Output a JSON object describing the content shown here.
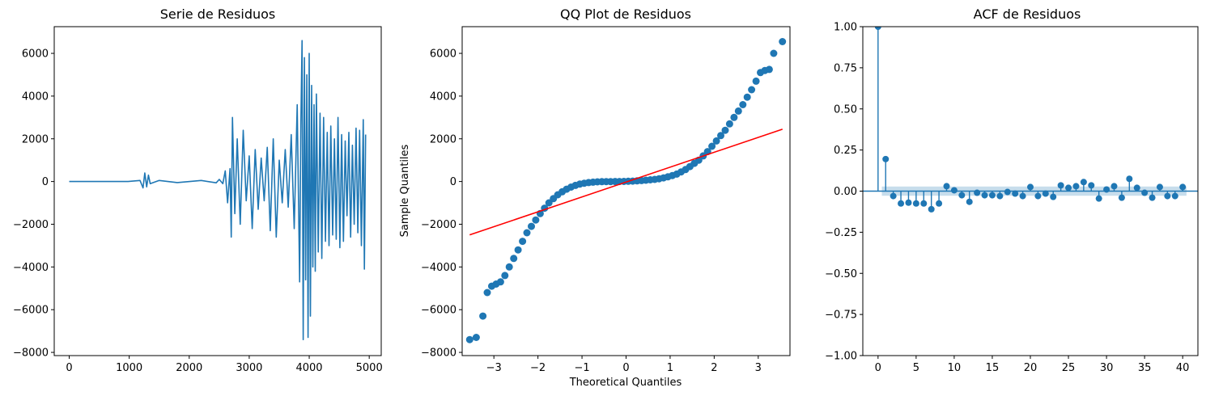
{
  "chart_data": [
    {
      "type": "line",
      "title": "Serie de Residuos",
      "xlabel": "",
      "ylabel": "",
      "xlim": [
        -250,
        5200
      ],
      "ylim": [
        -8150,
        7250
      ],
      "x_ticks": [
        0,
        1000,
        2000,
        3000,
        4000,
        5000
      ],
      "y_ticks": [
        -8000,
        -6000,
        -4000,
        -2000,
        0,
        2000,
        4000,
        6000
      ],
      "grid": false,
      "series": [
        {
          "color": "#1f77b4",
          "x": [
            0,
            300,
            980,
            1180,
            1230,
            1260,
            1290,
            1320,
            1350,
            1500,
            1800,
            2200,
            2450,
            2500,
            2560,
            2600,
            2640,
            2680,
            2700,
            2720,
            2760,
            2800,
            2850,
            2900,
            2950,
            3000,
            3050,
            3100,
            3150,
            3200,
            3250,
            3300,
            3350,
            3400,
            3450,
            3500,
            3550,
            3600,
            3650,
            3700,
            3750,
            3800,
            3840,
            3860,
            3880,
            3900,
            3920,
            3940,
            3960,
            3980,
            4000,
            4020,
            4040,
            4060,
            4080,
            4100,
            4120,
            4150,
            4180,
            4210,
            4240,
            4270,
            4300,
            4330,
            4360,
            4390,
            4420,
            4450,
            4480,
            4510,
            4540,
            4570,
            4600,
            4630,
            4660,
            4690,
            4720,
            4750,
            4780,
            4810,
            4840,
            4870,
            4900,
            4920,
            4940
          ],
          "y": [
            0,
            0,
            0,
            50,
            -300,
            400,
            -250,
            300,
            -100,
            50,
            -50,
            50,
            -60,
            100,
            -100,
            500,
            -1000,
            600,
            -2600,
            3000,
            -1500,
            2000,
            -2000,
            2400,
            -900,
            1200,
            -2200,
            1500,
            -1300,
            1100,
            -900,
            1600,
            -2300,
            2000,
            -2600,
            1000,
            -1000,
            1500,
            -1200,
            2200,
            -2200,
            3600,
            -4700,
            2600,
            6600,
            -7400,
            5800,
            -4600,
            5000,
            -7300,
            6000,
            -6300,
            4500,
            -4000,
            3600,
            -4200,
            4100,
            -3300,
            3200,
            -3600,
            3000,
            -2800,
            2300,
            -3000,
            2600,
            -2500,
            2000,
            -2700,
            3000,
            -3100,
            2200,
            -2800,
            1900,
            -1600,
            2300,
            -2600,
            1700,
            -2000,
            2500,
            -2400,
            2400,
            -3000,
            2900,
            -4100,
            2200
          ]
        }
      ]
    },
    {
      "type": "scatter",
      "title": "QQ Plot de Residuos",
      "xlabel": "Theoretical Quantiles",
      "ylabel": "Sample Quantiles",
      "xlim": [
        -3.72,
        3.72
      ],
      "ylim": [
        -8150,
        7250
      ],
      "x_ticks": [
        -3,
        -2,
        -1,
        0,
        1,
        2,
        3
      ],
      "y_ticks": [
        -8000,
        -6000,
        -4000,
        -2000,
        0,
        2000,
        4000,
        6000
      ],
      "grid": false,
      "series": [
        {
          "color": "#1f77b4",
          "x": [
            -3.55,
            -3.4,
            -3.25,
            -3.15,
            -3.05,
            -2.95,
            -2.85,
            -2.75,
            -2.65,
            -2.55,
            -2.45,
            -2.35,
            -2.25,
            -2.15,
            -2.05,
            -1.95,
            -1.85,
            -1.75,
            -1.65,
            -1.55,
            -1.45,
            -1.35,
            -1.25,
            -1.15,
            -1.05,
            -0.95,
            -0.85,
            -0.75,
            -0.65,
            -0.55,
            -0.45,
            -0.35,
            -0.25,
            -0.15,
            -0.05,
            0.05,
            0.15,
            0.25,
            0.35,
            0.45,
            0.55,
            0.65,
            0.75,
            0.85,
            0.95,
            1.05,
            1.15,
            1.25,
            1.35,
            1.45,
            1.55,
            1.65,
            1.75,
            1.85,
            1.95,
            2.05,
            2.15,
            2.25,
            2.35,
            2.45,
            2.55,
            2.65,
            2.75,
            2.85,
            2.95,
            3.05,
            3.15,
            3.25,
            3.35,
            3.55
          ],
          "y": [
            -7400,
            -7300,
            -6300,
            -5200,
            -4900,
            -4800,
            -4700,
            -4400,
            -4000,
            -3600,
            -3200,
            -2800,
            -2400,
            -2100,
            -1800,
            -1500,
            -1250,
            -1000,
            -800,
            -620,
            -480,
            -360,
            -260,
            -180,
            -120,
            -80,
            -50,
            -30,
            -15,
            -8,
            -4,
            -2,
            0,
            2,
            5,
            10,
            20,
            30,
            45,
            60,
            80,
            100,
            130,
            170,
            220,
            280,
            350,
            450,
            560,
            700,
            850,
            1000,
            1200,
            1400,
            1650,
            1900,
            2150,
            2400,
            2700,
            3000,
            3300,
            3600,
            3950,
            4300,
            4700,
            5100,
            5200,
            5250,
            6000,
            6550
          ]
        },
        {
          "name": "",
          "color": "#ff0000",
          "x": [
            -3.55,
            3.55
          ],
          "y": [
            -2500,
            2450
          ]
        }
      ]
    },
    {
      "type": "bar",
      "title": "ACF de Residuos",
      "xlabel": "",
      "ylabel": "",
      "xlim": [
        -2,
        42
      ],
      "ylim": [
        -1.0,
        1.0
      ],
      "x_ticks": [
        0,
        5,
        10,
        15,
        20,
        25,
        30,
        35,
        40
      ],
      "y_ticks": [
        -1.0,
        -0.75,
        -0.5,
        -0.25,
        0.0,
        0.25,
        0.5,
        0.75,
        1.0
      ],
      "grid": false,
      "confidence_band": [
        -0.028,
        0.028
      ],
      "series": [
        {
          "color": "#1f77b4",
          "x": [
            0,
            1,
            2,
            3,
            4,
            5,
            6,
            7,
            8,
            9,
            10,
            11,
            12,
            13,
            14,
            15,
            16,
            17,
            18,
            19,
            20,
            21,
            22,
            23,
            24,
            25,
            26,
            27,
            28,
            29,
            30,
            31,
            32,
            33,
            34,
            35,
            36,
            37,
            38,
            39,
            40
          ],
          "values": [
            1.0,
            0.195,
            -0.03,
            -0.075,
            -0.07,
            -0.075,
            -0.075,
            -0.11,
            -0.075,
            0.03,
            0.005,
            -0.025,
            -0.065,
            -0.01,
            -0.025,
            -0.025,
            -0.03,
            -0.005,
            -0.015,
            -0.03,
            0.025,
            -0.03,
            -0.015,
            -0.035,
            0.035,
            0.02,
            0.03,
            0.055,
            0.035,
            -0.045,
            0.01,
            0.03,
            -0.04,
            0.075,
            0.02,
            -0.01,
            -0.04,
            0.025,
            -0.03,
            -0.03,
            0.025
          ]
        }
      ]
    }
  ]
}
